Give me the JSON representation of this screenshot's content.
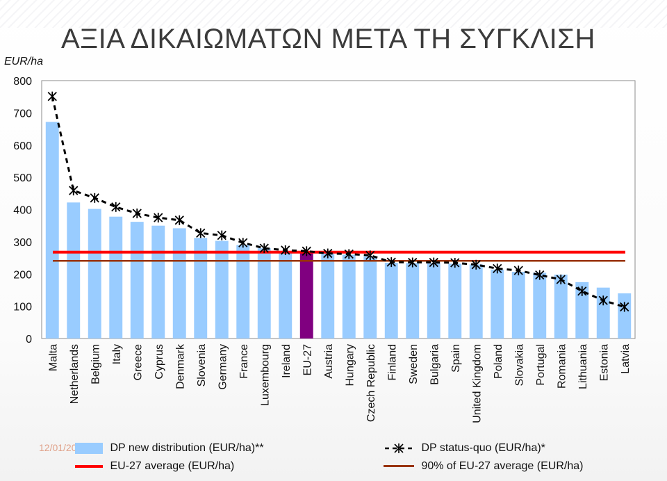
{
  "title": "ΑΞΙΑ ΔΙΚΑΙΩΜΑΤΩΝ ΜΕΤΑ ΤΗ ΣΥΓΚΛΙΣΗ",
  "unit_label": "EUR/ha",
  "date": "12/01/2012",
  "colors": {
    "bar": "#99ccff",
    "bar_highlight": "#800080",
    "avg_line": "#ff0000",
    "avg90_line": "#993300",
    "status_quo": "#000000"
  },
  "chart_data": {
    "type": "bar",
    "ylim": [
      0,
      800
    ],
    "yticks": [
      0,
      100,
      200,
      300,
      400,
      500,
      600,
      700,
      800
    ],
    "grid": false,
    "categories": [
      "Malta",
      "Netherlands",
      "Belgium",
      "Italy",
      "Greece",
      "Cyprus",
      "Denmark",
      "Slovenia",
      "Germany",
      "France",
      "Luxembourg",
      "Ireland",
      "EU-27",
      "Austria",
      "Hungary",
      "Czech Republic",
      "Finland",
      "Sweden",
      "Bulgaria",
      "Spain",
      "United Kingdom",
      "Poland",
      "Slovakia",
      "Portugal",
      "Romania",
      "Lithuania",
      "Estonia",
      "Latvia"
    ],
    "highlight_category": "EU-27",
    "series": [
      {
        "name": "DP new distribution (EUR/ha)**",
        "kind": "bar",
        "values": [
          672,
          422,
          402,
          378,
          362,
          350,
          342,
          312,
          303,
          290,
          280,
          272,
          268,
          265,
          260,
          255,
          235,
          234,
          233,
          232,
          230,
          214,
          207,
          204,
          198,
          175,
          158,
          140
        ]
      },
      {
        "name": "DP status-quo (EUR/ha)*",
        "kind": "line-dashed-markers",
        "values": [
          751,
          459,
          436,
          408,
          388,
          375,
          367,
          327,
          320,
          297,
          280,
          274,
          271,
          264,
          262,
          258,
          237,
          236,
          236,
          235,
          229,
          217,
          211,
          197,
          183,
          147,
          118,
          98
        ]
      },
      {
        "name": "EU-27 average (EUR/ha)",
        "kind": "hline",
        "value": 268
      },
      {
        "name": "90% of EU-27 average (EUR/ha)",
        "kind": "hline",
        "value": 241
      }
    ],
    "legend_placement": "bottom"
  }
}
